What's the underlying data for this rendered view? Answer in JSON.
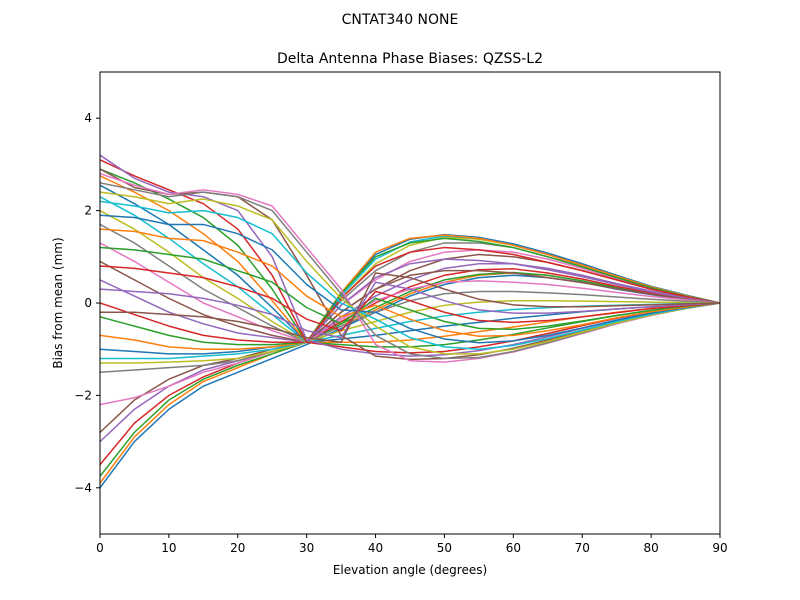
{
  "suptitle": "CNTAT340         NONE",
  "chart_data": {
    "type": "line",
    "title": "Delta Antenna Phase Biases: QZSS-L2",
    "xlabel": "Elevation angle (degrees)",
    "ylabel": "Bias from mean (mm)",
    "xlim": [
      0,
      90
    ],
    "ylim": [
      -5,
      5
    ],
    "xticks": [
      0,
      10,
      20,
      30,
      40,
      50,
      60,
      70,
      80,
      90
    ],
    "yticks": [
      -4,
      -2,
      0,
      2,
      4
    ],
    "grid": false,
    "legend": "none",
    "colors": [
      "#1f77b4",
      "#ff7f0e",
      "#2ca02c",
      "#d62728",
      "#9467bd",
      "#8c564b",
      "#e377c2",
      "#7f7f7f",
      "#bcbd22",
      "#17becf"
    ],
    "x": [
      0,
      5,
      10,
      15,
      20,
      25,
      30,
      35,
      40,
      45,
      50,
      55,
      60,
      65,
      70,
      75,
      80,
      85,
      90
    ],
    "series": [
      {
        "values": [
          -4.0,
          -3.0,
          -2.3,
          -1.8,
          -1.5,
          -1.2,
          -0.9,
          -0.55,
          -0.2,
          0.15,
          0.4,
          0.55,
          0.6,
          0.55,
          0.45,
          0.3,
          0.18,
          0.08,
          0.0
        ]
      },
      {
        "values": [
          -3.9,
          -2.9,
          -2.2,
          -1.7,
          -1.4,
          -1.1,
          -0.85,
          -0.5,
          -0.15,
          0.2,
          0.45,
          0.6,
          0.65,
          0.6,
          0.48,
          0.33,
          0.2,
          0.09,
          0.0
        ]
      },
      {
        "values": [
          -3.75,
          -2.8,
          -2.1,
          -1.65,
          -1.35,
          -1.1,
          -0.85,
          -0.45,
          -0.1,
          0.25,
          0.5,
          0.62,
          0.66,
          0.6,
          0.48,
          0.33,
          0.2,
          0.09,
          0.0
        ]
      },
      {
        "values": [
          -3.5,
          -2.6,
          -2.0,
          -1.6,
          -1.3,
          -1.05,
          -0.85,
          -0.4,
          0.0,
          0.35,
          0.6,
          0.72,
          0.74,
          0.65,
          0.52,
          0.36,
          0.22,
          0.1,
          0.0
        ]
      },
      {
        "values": [
          -3.0,
          -2.3,
          -1.8,
          -1.45,
          -1.25,
          -1.05,
          -0.85,
          -0.3,
          0.15,
          0.5,
          0.75,
          0.85,
          0.85,
          0.75,
          0.6,
          0.42,
          0.26,
          0.12,
          0.0
        ]
      },
      {
        "values": [
          -2.8,
          -2.1,
          -1.65,
          -1.35,
          -1.2,
          -1.0,
          -0.85,
          -0.2,
          0.3,
          0.7,
          0.95,
          1.05,
          1.0,
          0.88,
          0.7,
          0.5,
          0.3,
          0.14,
          0.0
        ]
      },
      {
        "values": [
          -2.2,
          -2.05,
          -1.8,
          -1.5,
          -1.3,
          -1.05,
          -0.85,
          -0.05,
          0.5,
          0.9,
          1.1,
          1.15,
          1.1,
          0.95,
          0.75,
          0.53,
          0.32,
          0.15,
          0.0
        ]
      },
      {
        "values": [
          -1.5,
          -1.45,
          -1.4,
          -1.35,
          -1.25,
          -1.05,
          -0.85,
          0.05,
          0.7,
          1.1,
          1.3,
          1.3,
          1.2,
          1.0,
          0.8,
          0.56,
          0.34,
          0.16,
          0.0
        ]
      },
      {
        "values": [
          -1.3,
          -1.3,
          -1.28,
          -1.25,
          -1.2,
          -1.05,
          -0.85,
          0.1,
          0.85,
          1.25,
          1.42,
          1.38,
          1.25,
          1.05,
          0.82,
          0.58,
          0.35,
          0.16,
          0.0
        ]
      },
      {
        "values": [
          -1.2,
          -1.2,
          -1.2,
          -1.15,
          -1.1,
          -1.0,
          -0.85,
          0.15,
          0.95,
          1.32,
          1.45,
          1.4,
          1.27,
          1.07,
          0.84,
          0.6,
          0.36,
          0.17,
          0.0
        ]
      },
      {
        "values": [
          -1.0,
          -1.05,
          -1.1,
          -1.1,
          -1.05,
          -0.95,
          -0.85,
          0.2,
          1.05,
          1.38,
          1.48,
          1.42,
          1.28,
          1.08,
          0.85,
          0.6,
          0.36,
          0.17,
          0.0
        ]
      },
      {
        "values": [
          -0.7,
          -0.8,
          -0.95,
          -1.0,
          -1.0,
          -0.95,
          -0.85,
          0.22,
          1.1,
          1.4,
          1.47,
          1.4,
          1.25,
          1.05,
          0.82,
          0.58,
          0.35,
          0.16,
          0.0
        ]
      },
      {
        "values": [
          -0.3,
          -0.5,
          -0.7,
          -0.85,
          -0.9,
          -0.9,
          -0.85,
          0.2,
          1.0,
          1.3,
          1.4,
          1.33,
          1.2,
          1.0,
          0.78,
          0.55,
          0.33,
          0.15,
          0.0
        ]
      },
      {
        "values": [
          0.0,
          -0.25,
          -0.5,
          -0.7,
          -0.8,
          -0.85,
          -0.85,
          0.1,
          0.8,
          1.1,
          1.2,
          1.15,
          1.05,
          0.88,
          0.7,
          0.5,
          0.3,
          0.14,
          0.0
        ]
      },
      {
        "values": [
          0.5,
          0.15,
          -0.2,
          -0.45,
          -0.65,
          -0.75,
          -0.85,
          -0.05,
          0.55,
          0.85,
          0.95,
          0.92,
          0.85,
          0.72,
          0.57,
          0.4,
          0.24,
          0.11,
          0.0
        ]
      },
      {
        "values": [
          0.9,
          0.5,
          0.1,
          -0.25,
          -0.5,
          -0.7,
          -0.85,
          -0.2,
          0.3,
          0.6,
          0.7,
          0.7,
          0.65,
          0.55,
          0.44,
          0.31,
          0.19,
          0.09,
          0.0
        ]
      },
      {
        "values": [
          1.3,
          0.9,
          0.45,
          0.0,
          -0.3,
          -0.6,
          -0.85,
          -0.35,
          0.05,
          0.3,
          0.45,
          0.48,
          0.45,
          0.4,
          0.32,
          0.23,
          0.14,
          0.07,
          0.0
        ]
      },
      {
        "values": [
          1.7,
          1.3,
          0.8,
          0.3,
          -0.1,
          -0.5,
          -0.85,
          -0.5,
          -0.2,
          0.05,
          0.2,
          0.25,
          0.25,
          0.22,
          0.18,
          0.13,
          0.08,
          0.04,
          0.0
        ]
      },
      {
        "values": [
          2.0,
          1.6,
          1.1,
          0.55,
          0.1,
          -0.4,
          -0.85,
          -0.6,
          -0.4,
          -0.2,
          -0.05,
          0.02,
          0.05,
          0.05,
          0.04,
          0.03,
          0.02,
          0.01,
          0.0
        ]
      },
      {
        "values": [
          2.3,
          1.9,
          1.4,
          0.85,
          0.35,
          -0.25,
          -0.85,
          -0.7,
          -0.55,
          -0.4,
          -0.28,
          -0.2,
          -0.14,
          -0.1,
          -0.07,
          -0.05,
          -0.03,
          -0.01,
          0.0
        ]
      },
      {
        "values": [
          2.55,
          2.15,
          1.7,
          1.15,
          0.6,
          -0.1,
          -0.85,
          -0.78,
          -0.7,
          -0.6,
          -0.5,
          -0.42,
          -0.33,
          -0.26,
          -0.19,
          -0.13,
          -0.08,
          -0.04,
          0.0
        ]
      },
      {
        "values": [
          2.75,
          2.4,
          2.0,
          1.5,
          0.9,
          0.05,
          -0.85,
          -0.85,
          -0.85,
          -0.8,
          -0.72,
          -0.62,
          -0.52,
          -0.41,
          -0.3,
          -0.2,
          -0.12,
          -0.05,
          0.0
        ]
      },
      {
        "values": [
          2.9,
          2.6,
          2.25,
          1.85,
          1.25,
          0.3,
          -0.85,
          -0.9,
          -0.95,
          -0.95,
          -0.9,
          -0.8,
          -0.68,
          -0.54,
          -0.4,
          -0.27,
          -0.16,
          -0.07,
          0.0
        ]
      },
      {
        "values": [
          3.1,
          2.75,
          2.45,
          2.15,
          1.6,
          0.6,
          -0.85,
          -0.95,
          -1.05,
          -1.08,
          -1.05,
          -0.95,
          -0.82,
          -0.66,
          -0.49,
          -0.33,
          -0.2,
          -0.09,
          0.0
        ]
      },
      {
        "values": [
          3.2,
          2.7,
          2.4,
          2.3,
          2.0,
          1.0,
          -0.8,
          -1.0,
          -1.1,
          -1.15,
          -1.12,
          -1.03,
          -0.9,
          -0.73,
          -0.55,
          -0.37,
          -0.22,
          -0.1,
          0.0
        ]
      },
      {
        "values": [
          2.9,
          2.5,
          2.35,
          2.4,
          2.3,
          1.8,
          0.6,
          -0.7,
          -1.15,
          -1.22,
          -1.2,
          -1.12,
          -0.98,
          -0.8,
          -0.6,
          -0.41,
          -0.24,
          -0.11,
          0.0
        ]
      },
      {
        "values": [
          2.8,
          2.55,
          2.35,
          2.45,
          2.35,
          2.1,
          1.2,
          0.3,
          -0.9,
          -1.25,
          -1.28,
          -1.2,
          -1.06,
          -0.87,
          -0.66,
          -0.45,
          -0.27,
          -0.12,
          0.0
        ]
      },
      {
        "values": [
          2.6,
          2.45,
          2.3,
          2.4,
          2.3,
          2.0,
          1.1,
          0.2,
          -0.7,
          -1.1,
          -1.2,
          -1.18,
          -1.05,
          -0.86,
          -0.65,
          -0.44,
          -0.26,
          -0.12,
          0.0
        ]
      },
      {
        "values": [
          2.4,
          2.3,
          2.15,
          2.25,
          2.1,
          1.8,
          0.9,
          0.1,
          -0.5,
          -0.95,
          -1.1,
          -1.1,
          -1.0,
          -0.83,
          -0.63,
          -0.43,
          -0.26,
          -0.12,
          0.0
        ]
      },
      {
        "values": [
          2.2,
          2.1,
          1.95,
          2.0,
          1.85,
          1.5,
          0.65,
          0.0,
          -0.35,
          -0.75,
          -0.95,
          -1.0,
          -0.92,
          -0.77,
          -0.59,
          -0.4,
          -0.24,
          -0.11,
          0.0
        ]
      },
      {
        "values": [
          1.9,
          1.85,
          1.7,
          1.7,
          1.5,
          1.15,
          0.4,
          -0.15,
          -0.2,
          -0.55,
          -0.78,
          -0.86,
          -0.82,
          -0.7,
          -0.54,
          -0.37,
          -0.22,
          -0.1,
          0.0
        ]
      },
      {
        "values": [
          1.6,
          1.55,
          1.4,
          1.35,
          1.1,
          0.8,
          0.15,
          -0.3,
          -0.05,
          -0.35,
          -0.6,
          -0.72,
          -0.7,
          -0.6,
          -0.47,
          -0.32,
          -0.19,
          -0.09,
          0.0
        ]
      },
      {
        "values": [
          1.2,
          1.15,
          1.05,
          0.95,
          0.7,
          0.45,
          -0.1,
          -0.45,
          0.1,
          -0.15,
          -0.4,
          -0.55,
          -0.57,
          -0.5,
          -0.39,
          -0.27,
          -0.16,
          -0.07,
          0.0
        ]
      },
      {
        "values": [
          0.8,
          0.75,
          0.65,
          0.55,
          0.35,
          0.1,
          -0.35,
          -0.6,
          0.25,
          0.05,
          -0.2,
          -0.38,
          -0.42,
          -0.38,
          -0.3,
          -0.21,
          -0.12,
          -0.06,
          0.0
        ]
      },
      {
        "values": [
          0.3,
          0.25,
          0.2,
          0.1,
          -0.05,
          -0.25,
          -0.6,
          -0.75,
          0.45,
          0.3,
          0.05,
          -0.15,
          -0.22,
          -0.22,
          -0.18,
          -0.13,
          -0.08,
          -0.04,
          0.0
        ]
      },
      {
        "values": [
          -0.2,
          -0.2,
          -0.25,
          -0.3,
          -0.4,
          -0.55,
          -0.75,
          -0.85,
          0.65,
          0.55,
          0.3,
          0.08,
          -0.04,
          -0.08,
          -0.08,
          -0.06,
          -0.04,
          -0.02,
          0.0
        ]
      }
    ]
  }
}
